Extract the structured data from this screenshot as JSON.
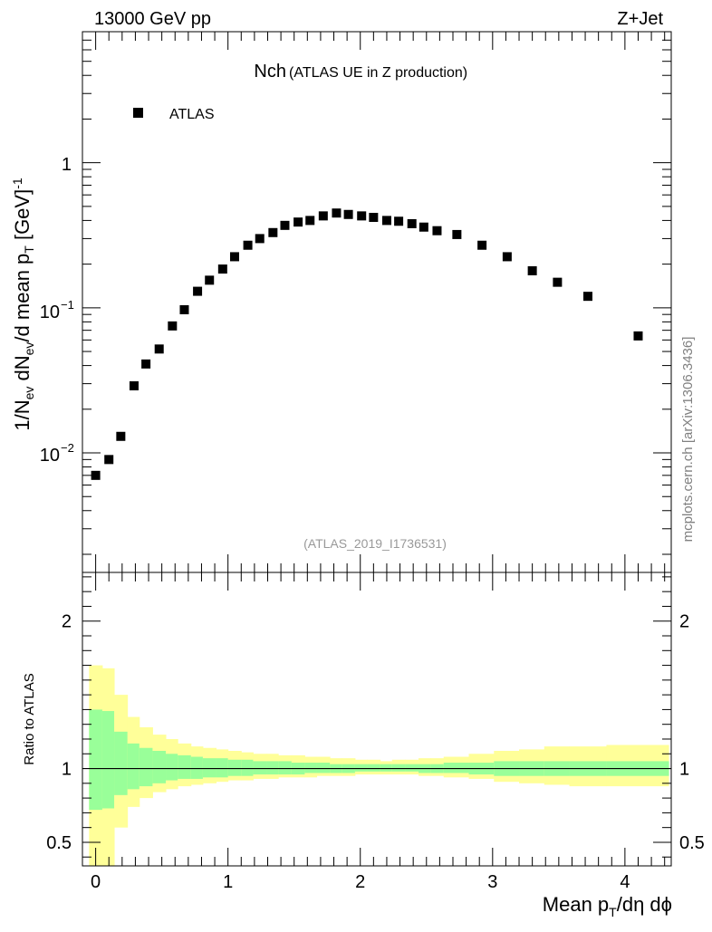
{
  "header": {
    "energy": "13000 GeV pp",
    "process": "Z+Jet"
  },
  "watermark": "mcplots.cern.ch [arXiv:1306.3436]",
  "colors": {
    "markers": "#000000",
    "band_inner": "#99ff99",
    "band_outer": "#ffff99",
    "reference_label": "#999999"
  },
  "chart_data": [
    {
      "type": "scatter",
      "title_main": "Nch",
      "title_sub": "(ATLAS UE in Z production)",
      "reference": "(ATLAS_2019_I1736531)",
      "ylabel_parts": {
        "a": "1/N",
        "a_sub": "ev",
        "b": " dN",
        "b_sub": "ev",
        "c": "/d mean p",
        "c_sub": "T",
        "d": " [GeV]",
        "d_sup": "-1"
      },
      "yscale": "log",
      "ylim": [
        0.0015,
        8
      ],
      "xlim": [
        -0.1,
        4.35
      ],
      "ytick_labels": {
        "1": "1",
        "0.1": "10",
        "0.1_exp": "−1",
        "0.01": "10",
        "0.01_exp": "−2"
      },
      "legend_position": "top-left",
      "series": [
        {
          "name": "ATLAS",
          "marker": "square",
          "x": [
            0.0,
            0.1,
            0.19,
            0.29,
            0.38,
            0.48,
            0.58,
            0.67,
            0.77,
            0.86,
            0.96,
            1.05,
            1.15,
            1.24,
            1.34,
            1.43,
            1.53,
            1.62,
            1.72,
            1.82,
            1.91,
            2.01,
            2.1,
            2.2,
            2.29,
            2.39,
            2.48,
            2.58,
            2.73,
            2.92,
            3.11,
            3.3,
            3.49,
            3.72,
            4.1
          ],
          "y": [
            0.007,
            0.009,
            0.013,
            0.029,
            0.041,
            0.052,
            0.075,
            0.097,
            0.13,
            0.155,
            0.185,
            0.225,
            0.27,
            0.3,
            0.33,
            0.37,
            0.39,
            0.4,
            0.43,
            0.45,
            0.44,
            0.43,
            0.42,
            0.4,
            0.395,
            0.38,
            0.36,
            0.34,
            0.32,
            0.27,
            0.225,
            0.18,
            0.15,
            0.12,
            0.064
          ]
        }
      ]
    },
    {
      "type": "area",
      "ylabel": "Ratio to ATLAS",
      "xlabel": "Mean p_T/dη dϕ",
      "xlabel_parts": {
        "a": "Mean p",
        "a_sub": "T",
        "b": "/dη dϕ"
      },
      "ylim": [
        0.34,
        2.33
      ],
      "xlim": [
        -0.1,
        4.35
      ],
      "yticks": [
        0.5,
        1,
        2
      ],
      "ytick_labels": [
        "0.5",
        "1",
        "2"
      ],
      "xticks": [
        0,
        1,
        2,
        3,
        4
      ],
      "xtick_labels": [
        "0",
        "1",
        "2",
        "3",
        "4"
      ],
      "reference_line": 1,
      "bin_edges": [
        -0.05,
        0.05,
        0.14,
        0.24,
        0.33,
        0.43,
        0.53,
        0.62,
        0.72,
        0.81,
        0.91,
        1.0,
        1.1,
        1.19,
        1.29,
        1.38,
        1.48,
        1.58,
        1.67,
        1.77,
        1.86,
        1.96,
        2.05,
        2.15,
        2.24,
        2.34,
        2.44,
        2.53,
        2.63,
        2.82,
        3.01,
        3.2,
        3.39,
        3.58,
        3.86,
        4.33
      ],
      "inner_band": [
        [
          0.72,
          1.4
        ],
        [
          0.73,
          1.39
        ],
        [
          0.82,
          1.25
        ],
        [
          0.86,
          1.17
        ],
        [
          0.88,
          1.14
        ],
        [
          0.9,
          1.12
        ],
        [
          0.92,
          1.1
        ],
        [
          0.93,
          1.09
        ],
        [
          0.93,
          1.08
        ],
        [
          0.94,
          1.07
        ],
        [
          0.94,
          1.07
        ],
        [
          0.95,
          1.06
        ],
        [
          0.95,
          1.06
        ],
        [
          0.96,
          1.05
        ],
        [
          0.96,
          1.05
        ],
        [
          0.96,
          1.05
        ],
        [
          0.96,
          1.04
        ],
        [
          0.97,
          1.04
        ],
        [
          0.97,
          1.04
        ],
        [
          0.97,
          1.03
        ],
        [
          0.97,
          1.03
        ],
        [
          0.98,
          1.03
        ],
        [
          0.98,
          1.03
        ],
        [
          0.98,
          1.03
        ],
        [
          0.98,
          1.03
        ],
        [
          0.98,
          1.03
        ],
        [
          0.97,
          1.03
        ],
        [
          0.97,
          1.03
        ],
        [
          0.97,
          1.04
        ],
        [
          0.96,
          1.04
        ],
        [
          0.95,
          1.05
        ],
        [
          0.95,
          1.05
        ],
        [
          0.95,
          1.05
        ],
        [
          0.95,
          1.05
        ],
        [
          0.95,
          1.05
        ]
      ],
      "outer_band": [
        [
          0.3,
          1.7
        ],
        [
          0.3,
          1.68
        ],
        [
          0.6,
          1.5
        ],
        [
          0.74,
          1.35
        ],
        [
          0.8,
          1.28
        ],
        [
          0.84,
          1.23
        ],
        [
          0.86,
          1.2
        ],
        [
          0.88,
          1.17
        ],
        [
          0.89,
          1.15
        ],
        [
          0.9,
          1.14
        ],
        [
          0.91,
          1.13
        ],
        [
          0.92,
          1.12
        ],
        [
          0.92,
          1.11
        ],
        [
          0.93,
          1.1
        ],
        [
          0.93,
          1.1
        ],
        [
          0.94,
          1.09
        ],
        [
          0.94,
          1.09
        ],
        [
          0.94,
          1.08
        ],
        [
          0.95,
          1.08
        ],
        [
          0.95,
          1.07
        ],
        [
          0.95,
          1.07
        ],
        [
          0.96,
          1.06
        ],
        [
          0.96,
          1.06
        ],
        [
          0.96,
          1.05
        ],
        [
          0.96,
          1.06
        ],
        [
          0.96,
          1.06
        ],
        [
          0.95,
          1.07
        ],
        [
          0.95,
          1.07
        ],
        [
          0.94,
          1.08
        ],
        [
          0.93,
          1.1
        ],
        [
          0.91,
          1.12
        ],
        [
          0.9,
          1.13
        ],
        [
          0.89,
          1.15
        ],
        [
          0.88,
          1.15
        ],
        [
          0.88,
          1.16
        ]
      ]
    }
  ]
}
